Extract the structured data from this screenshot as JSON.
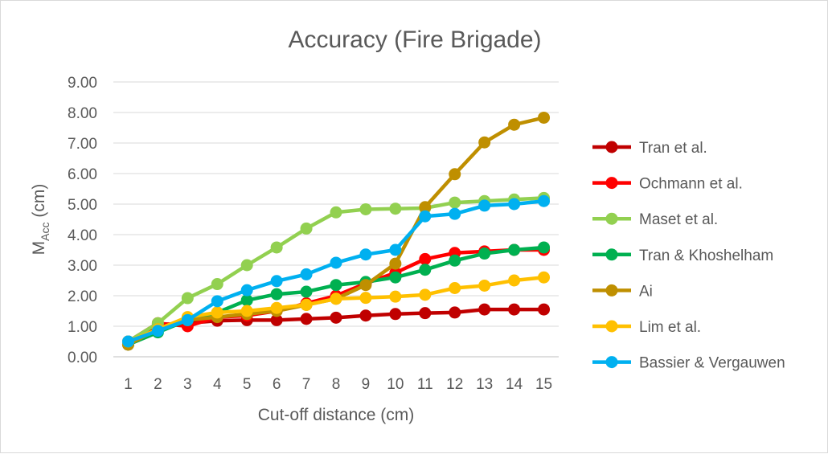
{
  "chart_data": {
    "type": "line",
    "title": "Accuracy (Fire Brigade)",
    "xlabel": "Cut-off distance (cm)",
    "ylabel": {
      "main": "M",
      "sub": "Acc",
      "rest": " (cm)"
    },
    "categories": [
      "1",
      "2",
      "3",
      "4",
      "5",
      "6",
      "7",
      "8",
      "9",
      "10",
      "11",
      "12",
      "13",
      "14",
      "15"
    ],
    "ylim": [
      0,
      9
    ],
    "yticks": [
      "0.00",
      "1.00",
      "2.00",
      "3.00",
      "4.00",
      "5.00",
      "6.00",
      "7.00",
      "8.00",
      "9.00"
    ],
    "grid": true,
    "legend_position": "right",
    "series": [
      {
        "name": "Tran et al.",
        "color": "#c00000",
        "values": [
          0.4,
          1.05,
          1.1,
          1.18,
          1.2,
          1.2,
          1.24,
          1.28,
          1.35,
          1.4,
          1.43,
          1.45,
          1.55,
          1.55,
          1.55
        ]
      },
      {
        "name": "Ochmann et al.",
        "color": "#ff0000",
        "values": [
          0.5,
          1.1,
          1.0,
          1.3,
          1.35,
          1.5,
          1.75,
          2.0,
          2.4,
          2.75,
          3.2,
          3.4,
          3.45,
          3.5,
          3.5
        ]
      },
      {
        "name": "Maset et al.",
        "color": "#92d050",
        "values": [
          0.5,
          1.1,
          1.92,
          2.38,
          3.0,
          3.58,
          4.2,
          4.73,
          4.83,
          4.85,
          4.87,
          5.05,
          5.1,
          5.15,
          5.2
        ]
      },
      {
        "name": "Tran & Khoshelham",
        "color": "#00b050",
        "values": [
          0.4,
          0.8,
          1.2,
          1.45,
          1.85,
          2.05,
          2.13,
          2.35,
          2.45,
          2.6,
          2.85,
          3.15,
          3.38,
          3.5,
          3.58
        ]
      },
      {
        "name": "Ai",
        "color": "#bf8f00",
        "values": [
          0.4,
          0.9,
          1.2,
          1.3,
          1.4,
          1.5,
          1.7,
          1.9,
          2.35,
          3.05,
          4.9,
          5.98,
          7.02,
          7.6,
          7.83
        ]
      },
      {
        "name": "Lim et al.",
        "color": "#ffc000",
        "values": [
          0.5,
          0.9,
          1.3,
          1.45,
          1.5,
          1.6,
          1.7,
          1.9,
          1.93,
          1.97,
          2.03,
          2.25,
          2.33,
          2.5,
          2.6
        ]
      },
      {
        "name": "Bassier & Vergauwen",
        "color": "#00b0f0",
        "values": [
          0.5,
          0.85,
          1.2,
          1.82,
          2.18,
          2.48,
          2.7,
          3.08,
          3.35,
          3.5,
          4.6,
          4.68,
          4.95,
          5.0,
          5.1
        ]
      }
    ]
  }
}
